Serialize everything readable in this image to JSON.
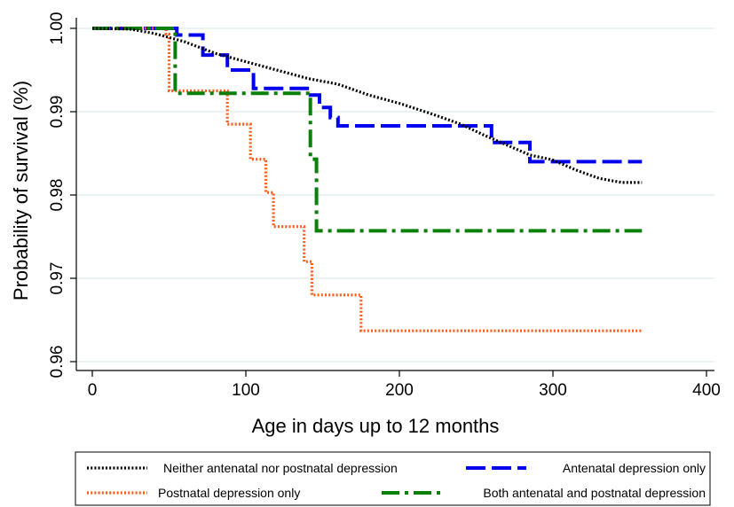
{
  "chart_data": {
    "type": "line",
    "step": true,
    "xlabel": "Age in days up to 12 months",
    "ylabel": "Probability of survival (%)",
    "xlim": [
      0,
      400
    ],
    "ylim": [
      0.96,
      1.0
    ],
    "xticks": [
      0,
      100,
      200,
      300,
      400
    ],
    "yticks": [
      0.96,
      0.97,
      0.98,
      0.99,
      1.0
    ],
    "xtick_labels": [
      "0",
      "100",
      "200",
      "300",
      "400"
    ],
    "ytick_labels": [
      "0.96",
      "0.97",
      "0.98",
      "0.99",
      "1.00"
    ],
    "grid": "horizontal",
    "legend_position": "bottom",
    "series": [
      {
        "name": "Neither antenatal nor postnatal depression",
        "color": "#000000",
        "style": "dotted",
        "points": [
          [
            0,
            1.0
          ],
          [
            25,
            0.9999
          ],
          [
            40,
            0.9994
          ],
          [
            60,
            0.9984
          ],
          [
            80,
            0.997
          ],
          [
            100,
            0.996
          ],
          [
            120,
            0.995
          ],
          [
            140,
            0.994
          ],
          [
            160,
            0.9933
          ],
          [
            180,
            0.992
          ],
          [
            200,
            0.991
          ],
          [
            220,
            0.9898
          ],
          [
            240,
            0.9885
          ],
          [
            255,
            0.9872
          ],
          [
            270,
            0.986
          ],
          [
            285,
            0.9848
          ],
          [
            300,
            0.9842
          ],
          [
            315,
            0.983
          ],
          [
            330,
            0.982
          ],
          [
            345,
            0.9815
          ],
          [
            358,
            0.9815
          ]
        ]
      },
      {
        "name": "Antenatal depression only",
        "color": "#0000ee",
        "style": "dashed",
        "points": [
          [
            0,
            1.0
          ],
          [
            55,
            1.0
          ],
          [
            55,
            0.9992
          ],
          [
            72,
            0.9992
          ],
          [
            72,
            0.9968
          ],
          [
            88,
            0.9968
          ],
          [
            88,
            0.995
          ],
          [
            105,
            0.995
          ],
          [
            105,
            0.9928
          ],
          [
            140,
            0.9928
          ],
          [
            140,
            0.992
          ],
          [
            148,
            0.992
          ],
          [
            148,
            0.9905
          ],
          [
            155,
            0.9905
          ],
          [
            155,
            0.9893
          ],
          [
            160,
            0.9893
          ],
          [
            160,
            0.9883
          ],
          [
            260,
            0.9883
          ],
          [
            260,
            0.9863
          ],
          [
            285,
            0.9863
          ],
          [
            285,
            0.984
          ],
          [
            358,
            0.984
          ]
        ]
      },
      {
        "name": "Postnatal depression only",
        "color": "#ff5a1a",
        "style": "dotted",
        "points": [
          [
            0,
            1.0
          ],
          [
            48,
            1.0
          ],
          [
            48,
            0.9993
          ],
          [
            50,
            0.9993
          ],
          [
            50,
            0.9925
          ],
          [
            88,
            0.9925
          ],
          [
            88,
            0.9885
          ],
          [
            103,
            0.9885
          ],
          [
            103,
            0.9843
          ],
          [
            113,
            0.9843
          ],
          [
            113,
            0.9803
          ],
          [
            118,
            0.9803
          ],
          [
            118,
            0.9762
          ],
          [
            138,
            0.9762
          ],
          [
            138,
            0.972
          ],
          [
            143,
            0.972
          ],
          [
            143,
            0.968
          ],
          [
            175,
            0.968
          ],
          [
            175,
            0.9637
          ],
          [
            358,
            0.9637
          ]
        ]
      },
      {
        "name": "Both antenatal and postnatal depression",
        "color": "#0a7f0a",
        "style": "dashdot",
        "points": [
          [
            0,
            1.0
          ],
          [
            54,
            1.0
          ],
          [
            54,
            0.9922
          ],
          [
            142,
            0.9922
          ],
          [
            142,
            0.9843
          ],
          [
            146,
            0.9843
          ],
          [
            146,
            0.9757
          ],
          [
            358,
            0.9757
          ]
        ]
      }
    ]
  }
}
